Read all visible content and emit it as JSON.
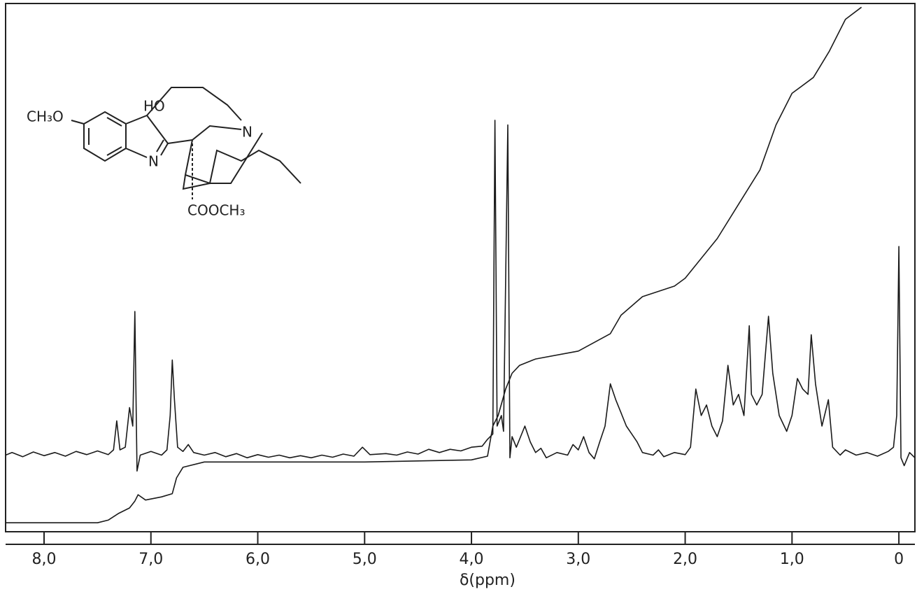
{
  "chart_data": {
    "type": "line",
    "xlabel": "δ(ppm)",
    "xlim": [
      8.36,
      -0.15
    ],
    "ylim": [
      0,
      100
    ],
    "xticks": [
      {
        "value": 8,
        "label": "8,0"
      },
      {
        "value": 7,
        "label": "7,0"
      },
      {
        "value": 6,
        "label": "6,0"
      },
      {
        "value": 5,
        "label": "5,0"
      },
      {
        "value": 4,
        "label": "4,0"
      },
      {
        "value": 3,
        "label": "3,0"
      },
      {
        "value": 2,
        "label": "2,0"
      },
      {
        "value": 1,
        "label": "1,0"
      },
      0
    ],
    "annotations": [
      "CH₃O",
      "HO",
      "N",
      "N",
      "COOCH₃"
    ],
    "series": [
      {
        "color": "#1a1a1a",
        "x": [
          8.36,
          8.3,
          8.2,
          8.1,
          8.0,
          7.9,
          7.8,
          7.7,
          7.6,
          7.5,
          7.4,
          7.35,
          7.32,
          7.29,
          7.24,
          7.2,
          7.17,
          7.15,
          7.13,
          7.1,
          7.0,
          6.9,
          6.85,
          6.82,
          6.8,
          6.78,
          6.75,
          6.7,
          6.65,
          6.6,
          6.5,
          6.4,
          6.3,
          6.2,
          6.1,
          6.0,
          5.9,
          5.8,
          5.7,
          5.6,
          5.5,
          5.4,
          5.3,
          5.2,
          5.1,
          5.02,
          4.95,
          4.8,
          4.7,
          4.6,
          4.5,
          4.4,
          4.3,
          4.2,
          4.1,
          4.0,
          3.9,
          3.85,
          3.8,
          3.78,
          3.76,
          3.72,
          3.7,
          3.66,
          3.64,
          3.62,
          3.58,
          3.5,
          3.45,
          3.4,
          3.35,
          3.3,
          3.2,
          3.1,
          3.05,
          3.0,
          2.95,
          2.9,
          2.85,
          2.8,
          2.75,
          2.7,
          2.65,
          2.6,
          2.55,
          2.5,
          2.45,
          2.4,
          2.3,
          2.25,
          2.2,
          2.1,
          2.0,
          1.95,
          1.9,
          1.85,
          1.8,
          1.75,
          1.7,
          1.65,
          1.6,
          1.55,
          1.5,
          1.45,
          1.4,
          1.38,
          1.33,
          1.28,
          1.22,
          1.18,
          1.12,
          1.05,
          1.0,
          0.95,
          0.9,
          0.85,
          0.82,
          0.78,
          0.72,
          0.66,
          0.62,
          0.55,
          0.5,
          0.4,
          0.3,
          0.2,
          0.1,
          0.05,
          0.02,
          0.0,
          -0.02,
          -0.05,
          -0.1,
          -0.15
        ],
        "values": [
          14.5,
          15.0,
          14.2,
          15.1,
          14.4,
          15.0,
          14.3,
          15.2,
          14.6,
          15.3,
          14.6,
          15.5,
          21,
          15.5,
          16.0,
          23.5,
          20,
          41.7,
          11.5,
          14.5,
          15.2,
          14.5,
          15.5,
          22,
          32.5,
          25,
          16,
          15.2,
          16.5,
          15.0,
          14.5,
          15.0,
          14.2,
          14.8,
          14.0,
          14.6,
          14.1,
          14.5,
          14.0,
          14.4,
          14.0,
          14.5,
          14.1,
          14.7,
          14.3,
          16.0,
          14.6,
          14.8,
          14.5,
          15.1,
          14.7,
          15.6,
          15.0,
          15.6,
          15.3,
          16.0,
          16.2,
          17.5,
          18.5,
          77.9,
          20,
          22,
          19,
          77,
          14,
          18,
          16,
          20,
          17,
          15,
          15.8,
          14.0,
          15.0,
          14.5,
          16.5,
          15.5,
          18.0,
          15,
          13.8,
          17,
          20,
          28,
          25,
          22.5,
          20,
          18.5,
          17,
          15,
          14.5,
          15.5,
          14.2,
          15.0,
          14.6,
          16,
          27,
          22,
          24,
          20,
          18,
          21,
          31.5,
          24,
          26,
          22,
          39,
          26,
          24,
          26,
          40.8,
          30,
          22,
          19,
          22,
          29,
          27,
          26,
          37.3,
          28,
          20,
          25,
          16,
          14.5,
          15.5,
          14.5,
          15.0,
          14.3,
          15.2,
          16.0,
          22,
          54,
          14,
          12.5,
          15,
          14
        ]
      },
      {
        "color": "#1a1a1a",
        "x": [
          8.36,
          7.5,
          7.4,
          7.3,
          7.2,
          7.15,
          7.12,
          7.05,
          6.9,
          6.8,
          6.76,
          6.7,
          6.5,
          6.0,
          5.0,
          4.0,
          3.85,
          3.8,
          3.75,
          3.68,
          3.62,
          3.55,
          3.4,
          3.0,
          2.7,
          2.6,
          2.4,
          2.1,
          2.0,
          1.7,
          1.5,
          1.3,
          1.15,
          1.0,
          0.8,
          0.65,
          0.5,
          0.35
        ],
        "values": [
          1.7,
          1.7,
          2.2,
          3.5,
          4.5,
          5.8,
          7.0,
          6.0,
          6.6,
          7.2,
          10.2,
          12.2,
          13.2,
          13.2,
          13.2,
          13.6,
          14.3,
          20,
          22,
          27,
          30,
          31.5,
          32.7,
          34.2,
          37.5,
          41,
          44.5,
          46.5,
          48,
          55.5,
          62,
          68.5,
          77,
          83,
          86,
          91,
          97,
          99.3
        ]
      }
    ]
  }
}
